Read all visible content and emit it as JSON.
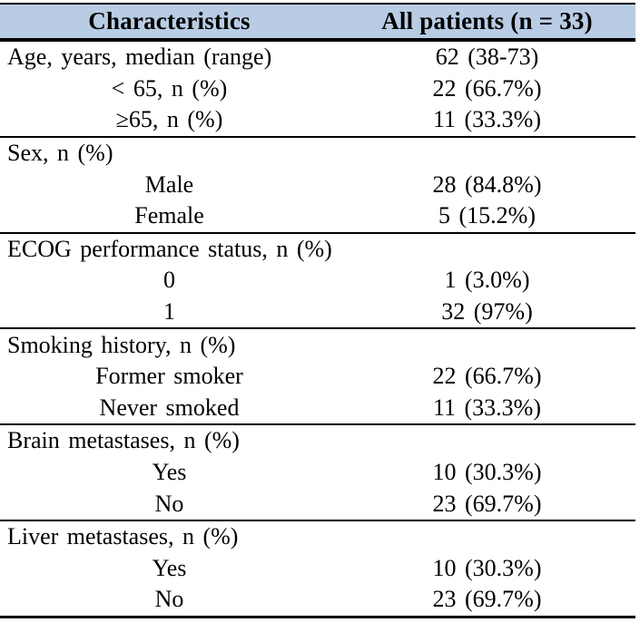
{
  "table": {
    "header": {
      "col1": "Characteristics",
      "col2": "All patients (n = 33)",
      "header_bg_color": "#b8cce4",
      "border_color": "#000000"
    },
    "sections": [
      {
        "rows": [
          {
            "label": "Age, years, median (range)",
            "value": "62 (38-73)",
            "indent": false
          },
          {
            "label": "< 65, n (%)",
            "value": "22 (66.7%)",
            "indent": true
          },
          {
            "label": "≥65, n (%)",
            "value": "11 (33.3%)",
            "indent": true
          }
        ]
      },
      {
        "rows": [
          {
            "label": "Sex, n (%)",
            "value": "",
            "indent": false
          },
          {
            "label": "Male",
            "value": "28 (84.8%)",
            "indent": true
          },
          {
            "label": "Female",
            "value": "5 (15.2%)",
            "indent": true
          }
        ]
      },
      {
        "rows": [
          {
            "label": "ECOG performance status, n (%)",
            "value": "",
            "indent": false
          },
          {
            "label": "0",
            "value": "1 (3.0%)",
            "indent": true
          },
          {
            "label": "1",
            "value": "32 (97%)",
            "indent": true
          }
        ]
      },
      {
        "rows": [
          {
            "label": "Smoking history, n (%)",
            "value": "",
            "indent": false
          },
          {
            "label": "Former smoker",
            "value": "22 (66.7%)",
            "indent": true
          },
          {
            "label": "Never smoked",
            "value": "11 (33.3%)",
            "indent": true
          }
        ]
      },
      {
        "rows": [
          {
            "label": "Brain metastases, n (%)",
            "value": "",
            "indent": false
          },
          {
            "label": "Yes",
            "value": "10 (30.3%)",
            "indent": true
          },
          {
            "label": "No",
            "value": "23 (69.7%)",
            "indent": true
          }
        ]
      },
      {
        "rows": [
          {
            "label": "Liver metastases, n (%)",
            "value": "",
            "indent": false
          },
          {
            "label": "Yes",
            "value": "10 (30.3%)",
            "indent": true
          },
          {
            "label": "No",
            "value": "23 (69.7%)",
            "indent": true
          }
        ]
      }
    ]
  }
}
